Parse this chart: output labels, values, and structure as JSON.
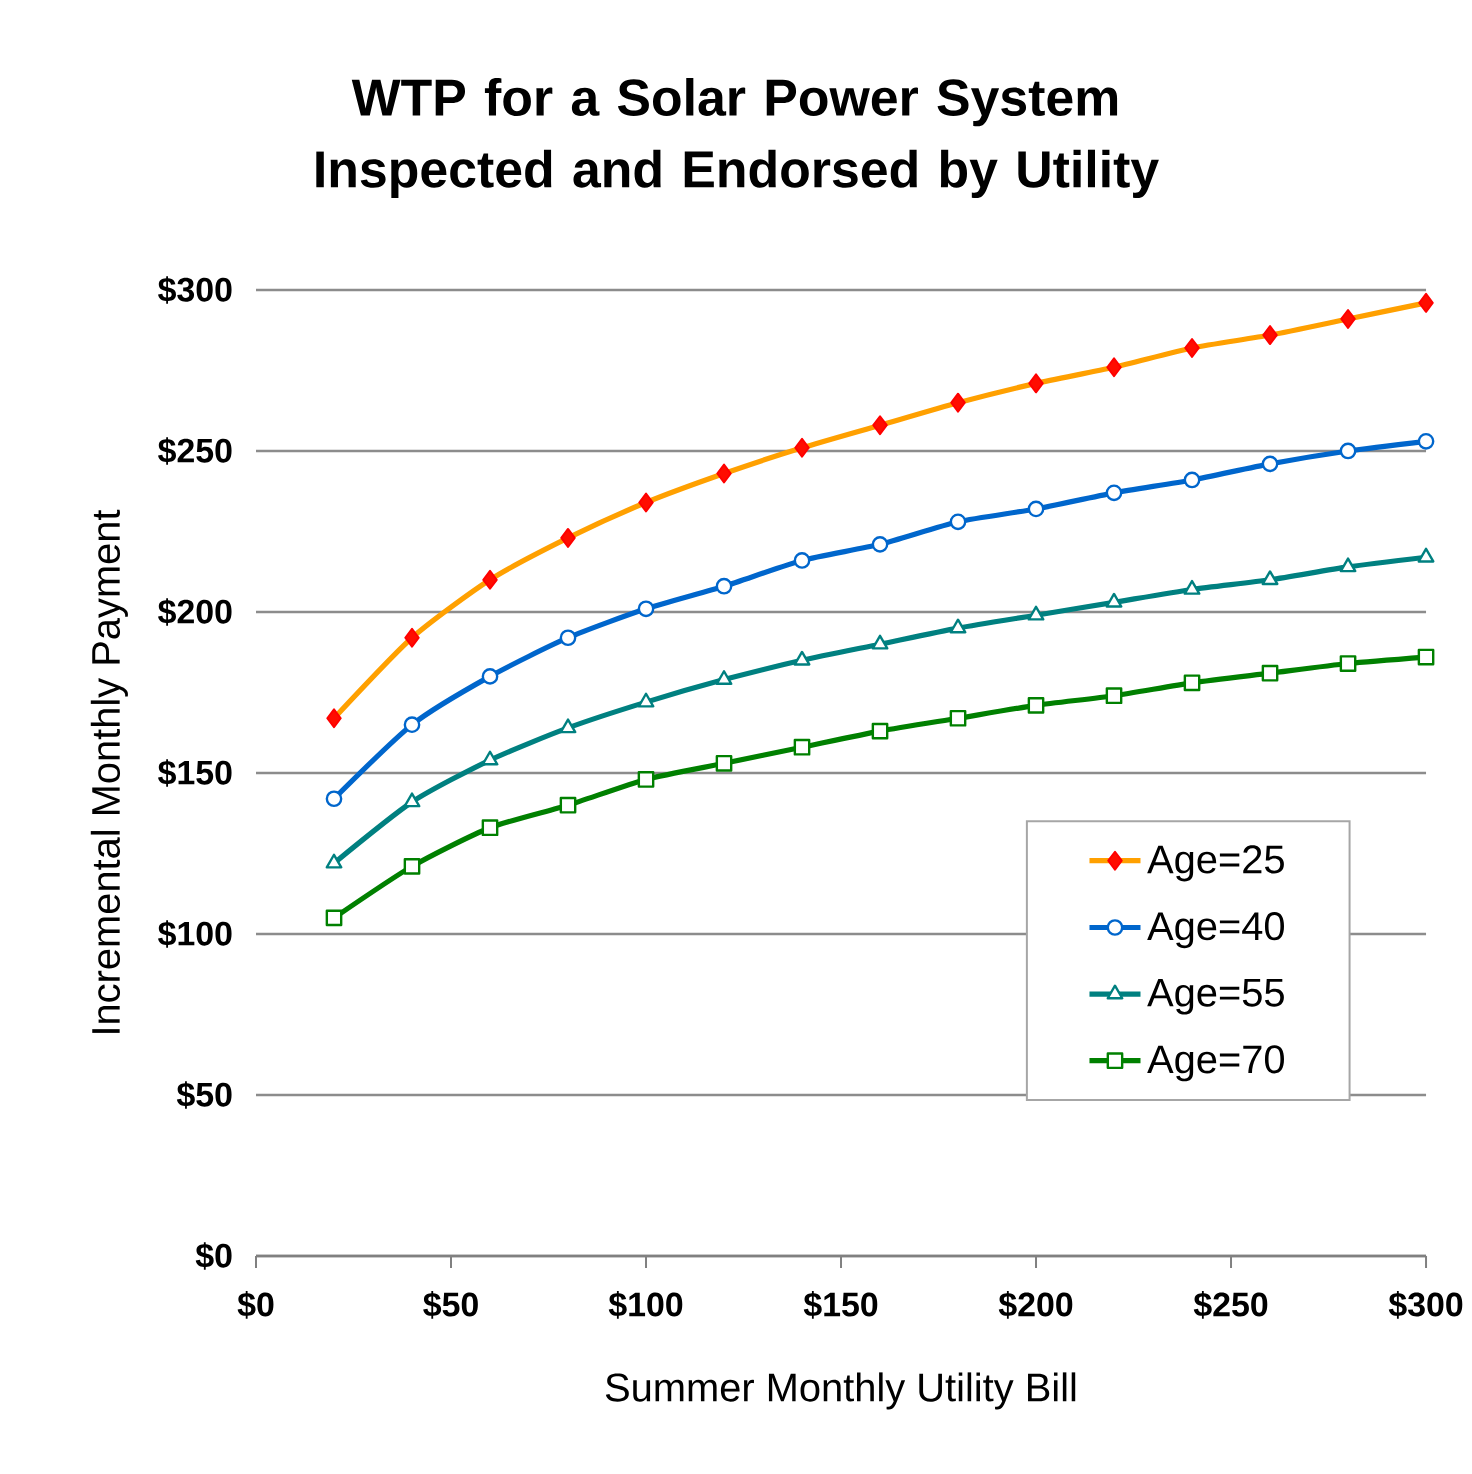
{
  "chart_data": {
    "type": "line",
    "title": "WTP for a Solar Power System\nInspected and Endorsed by Utility",
    "xlabel": "Summer Monthly Utility Bill",
    "ylabel": "Incremental Monthly Payment",
    "x": [
      20,
      40,
      60,
      80,
      100,
      120,
      140,
      160,
      180,
      200,
      220,
      240,
      260,
      280,
      300
    ],
    "series": [
      {
        "name": "Age=25",
        "color": "#ffa000",
        "marker": "diamond",
        "values": [
          167,
          192,
          210,
          223,
          234,
          243,
          251,
          258,
          265,
          271,
          276,
          282,
          286,
          291,
          296
        ]
      },
      {
        "name": "Age=40",
        "color": "#0066cc",
        "marker": "circle",
        "values": [
          142,
          165,
          180,
          192,
          201,
          208,
          216,
          221,
          228,
          232,
          237,
          241,
          246,
          250,
          253
        ]
      },
      {
        "name": "Age=55",
        "color": "#008080",
        "marker": "triangle",
        "values": [
          122,
          141,
          154,
          164,
          172,
          179,
          185,
          190,
          195,
          199,
          203,
          207,
          210,
          214,
          217
        ]
      },
      {
        "name": "Age=70",
        "color": "#008000",
        "marker": "square",
        "values": [
          105,
          121,
          133,
          140,
          148,
          153,
          158,
          163,
          167,
          171,
          174,
          178,
          181,
          184,
          186
        ]
      }
    ],
    "xlim": [
      0,
      300
    ],
    "ylim": [
      0,
      300
    ],
    "xticks": [
      {
        "value": 0,
        "label": "$0"
      },
      {
        "value": 50,
        "label": "$50"
      },
      {
        "value": 100,
        "label": "$100"
      },
      {
        "value": 150,
        "label": "$150"
      },
      {
        "value": 200,
        "label": "$200"
      },
      {
        "value": 250,
        "label": "$250"
      },
      {
        "value": 300,
        "label": "$300"
      }
    ],
    "yticks": [
      {
        "value": 0,
        "label": "$0"
      },
      {
        "value": 50,
        "label": "$50"
      },
      {
        "value": 100,
        "label": "$100"
      },
      {
        "value": 150,
        "label": "$150"
      },
      {
        "value": 200,
        "label": "$200"
      },
      {
        "value": 250,
        "label": "$250"
      },
      {
        "value": 300,
        "label": "$300"
      }
    ],
    "grid": "y",
    "legend": "bottom right",
    "line_style": "solid"
  }
}
